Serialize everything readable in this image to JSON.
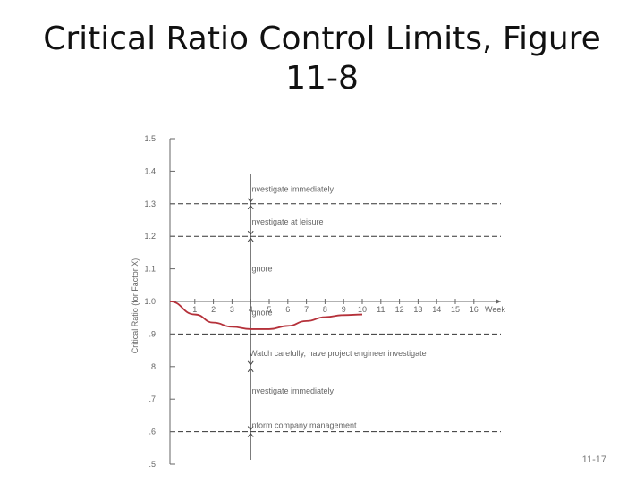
{
  "slide": {
    "title": "Critical Ratio Control Limits, Figure 11-8",
    "slide_number": "11-17"
  },
  "colors": {
    "curve": "#b5313a",
    "axis": "#666666",
    "text": "#666666"
  },
  "chart_data": {
    "type": "line",
    "ylabel": "Critical Ratio (for Factor X)",
    "xlabel": "Week",
    "ylim": [
      0.5,
      1.5
    ],
    "xlim": [
      0,
      17
    ],
    "y_ticks": [
      {
        "value": 1.5,
        "label": "1.5"
      },
      {
        "value": 1.4,
        "label": "1.4"
      },
      {
        "value": 1.3,
        "label": "1.3"
      },
      {
        "value": 1.2,
        "label": "1.2"
      },
      {
        "value": 1.1,
        "label": "1.1"
      },
      {
        "value": 1.0,
        "label": "1.0"
      },
      {
        "value": 0.9,
        "label": ".9"
      },
      {
        "value": 0.8,
        "label": ".8"
      },
      {
        "value": 0.7,
        "label": ".7"
      },
      {
        "value": 0.6,
        "label": ".6"
      },
      {
        "value": 0.5,
        "label": ".5"
      }
    ],
    "x_ticks": [
      "1",
      "2",
      "3",
      "4",
      "5",
      "6",
      "7",
      "8",
      "9",
      "10",
      "11",
      "12",
      "13",
      "14",
      "15",
      "16"
    ],
    "control_limits": [
      1.3,
      1.2,
      0.9,
      0.6
    ],
    "zones": [
      {
        "label": "Investigate immediately",
        "y": 1.345
      },
      {
        "label": "Investigate at leisure",
        "y": 1.245
      },
      {
        "label": "Ignore",
        "y": 1.1
      },
      {
        "label": "Ignore",
        "y": 0.965
      },
      {
        "label": "Watch carefully, have project engineer investigate",
        "y": 0.84
      },
      {
        "label": "Investigate immediately",
        "y": 0.725
      },
      {
        "label": "Inform company management",
        "y": 0.62
      }
    ],
    "current_week": 4,
    "series": [
      {
        "x": [
          0,
          1,
          2,
          3,
          4,
          5,
          6,
          7,
          8,
          9,
          10
        ],
        "y": [
          1.0,
          0.96,
          0.935,
          0.922,
          0.915,
          0.915,
          0.925,
          0.94,
          0.952,
          0.958,
          0.96
        ]
      }
    ]
  }
}
